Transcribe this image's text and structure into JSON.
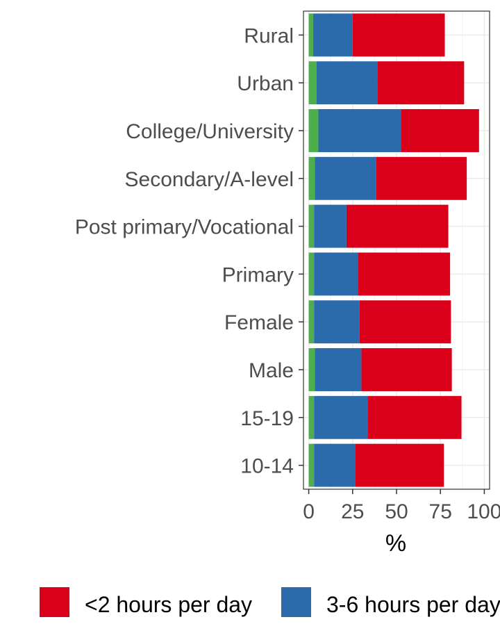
{
  "chart_data": {
    "type": "bar",
    "orientation": "horizontal",
    "stacked": true,
    "categories": [
      "Rural",
      "Urban",
      "College/University",
      "Secondary/A-level",
      "Post primary/Vocational",
      "Primary",
      "Female",
      "Male",
      "15-19",
      "10-14"
    ],
    "series": [
      {
        "name": "",
        "color": "#4DAF4A",
        "values": [
          2.5,
          4.5,
          5.5,
          3.5,
          3.0,
          3.0,
          3.0,
          3.5,
          3.0,
          3.0
        ]
      },
      {
        "name": "3-6 hours per day",
        "color": "#2B6AAB",
        "values": [
          22.5,
          34.5,
          47.0,
          35.0,
          18.5,
          25.0,
          26.0,
          26.5,
          30.5,
          23.5
        ]
      },
      {
        "name": "<2 hours per day",
        "color": "#DB0019",
        "values": [
          52.5,
          49.5,
          44.5,
          51.5,
          58.0,
          52.5,
          52.0,
          51.5,
          53.5,
          50.5
        ]
      }
    ],
    "xlabel": "%",
    "ylabel": "",
    "xlim": [
      -3,
      103
    ],
    "xticks": [
      "0",
      "25",
      "50",
      "75",
      "100"
    ],
    "xtick_values": [
      0,
      25,
      50,
      75,
      100
    ],
    "grid": true,
    "legend": {
      "position": "bottom",
      "entries": [
        {
          "label": "<2 hours per day",
          "color": "#DB0019"
        },
        {
          "label": "3-6 hours per day",
          "color": "#2B6AAB"
        }
      ]
    }
  }
}
